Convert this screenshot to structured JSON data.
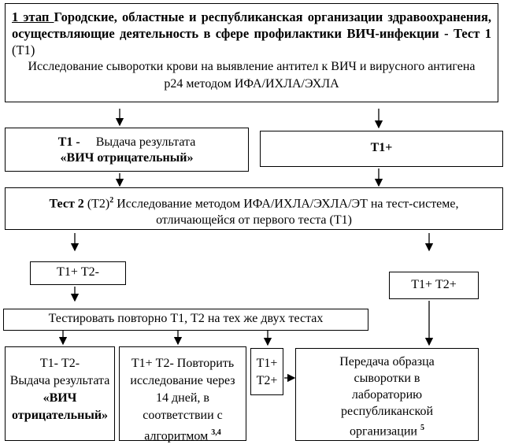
{
  "stage1": {
    "stage_label": "1 этап ",
    "title": "Городские, областные и республиканская организации здравоохранения, осуществляющие деятельность в сфере профилактики ВИЧ-инфекции - ",
    "test_label": "Тест 1",
    "test_code": " (Т1)",
    "description": "Исследование сыворотки крови на выявление антител к ВИЧ и вирусного антигена р24 методом ИФА/ИХЛА/ЭХЛА"
  },
  "t1_negative": {
    "code": "Т1 -",
    "text": "Выдача результата",
    "result": "«ВИЧ отрицательный»"
  },
  "t1_positive": {
    "code": "Т1+"
  },
  "test2": {
    "label": "Тест 2",
    "code": " (Т2)",
    "footnote": "2",
    "text": " Исследование методом ИФА/ИХЛА/ЭХЛА/ЭТ на тест-системе, отличающейся от первого теста (Т1)"
  },
  "t1p_t2n": {
    "text": "Т1+ Т2-"
  },
  "t1p_t2p": {
    "text": "Т1+ Т2+"
  },
  "retest": {
    "text": "Тестировать повторно Т1, Т2 на тех же двух тестах"
  },
  "final_negative": {
    "code": "Т1- Т2-",
    "text": "Выдача результата",
    "result": "«ВИЧ отрицательный»"
  },
  "final_repeat": {
    "code": "Т1+ Т2-",
    "text": " Повторить исследование через 14 дней, в соответствии с алгоритмом ",
    "footnote": "3,4"
  },
  "final_positive": {
    "line1": "Т1+",
    "line2": "Т2+"
  },
  "transfer": {
    "text": "Передача образца сыворотки в лабораторию республиканской организации ",
    "footnote": "5"
  }
}
